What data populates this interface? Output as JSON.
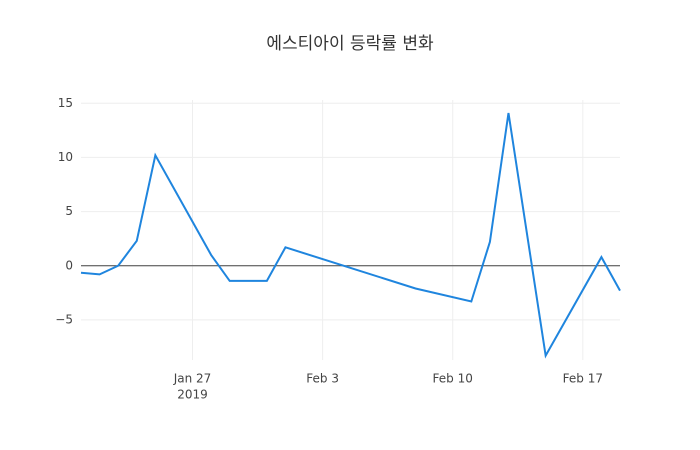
{
  "chart_data": {
    "type": "line",
    "title": "에스티아이 등락률 변화",
    "x": [
      "2019-01-21",
      "2019-01-22",
      "2019-01-23",
      "2019-01-24",
      "2019-01-25",
      "2019-01-28",
      "2019-01-29",
      "2019-01-31",
      "2019-02-01",
      "2019-02-08",
      "2019-02-11",
      "2019-02-12",
      "2019-02-13",
      "2019-02-15",
      "2019-02-18",
      "2019-02-19"
    ],
    "series": [
      {
        "color": "#1f85de",
        "values": [
          -0.65,
          -0.8,
          0,
          2.3,
          10.2,
          1.0,
          -1.4,
          -1.4,
          1.7,
          -2.1,
          -3.3,
          2.2,
          14.1,
          -8.3,
          0.8,
          -2.3
        ]
      }
    ],
    "xlim": [
      "2019-01-21",
      "2019-02-19"
    ],
    "xticks": [
      {
        "value": "2019-01-27",
        "label": "Jan 27"
      },
      {
        "value": "2019-02-03",
        "label": "Feb 3"
      },
      {
        "value": "2019-02-10",
        "label": "Feb 10"
      },
      {
        "value": "2019-02-17",
        "label": "Feb 17"
      }
    ],
    "x_year_label": "2019",
    "ylim": [
      -8.7,
      15.3
    ],
    "yticks": [
      {
        "value": -5,
        "label": "−5"
      },
      0,
      5,
      10,
      15
    ],
    "grid": true,
    "zeroline": true
  }
}
